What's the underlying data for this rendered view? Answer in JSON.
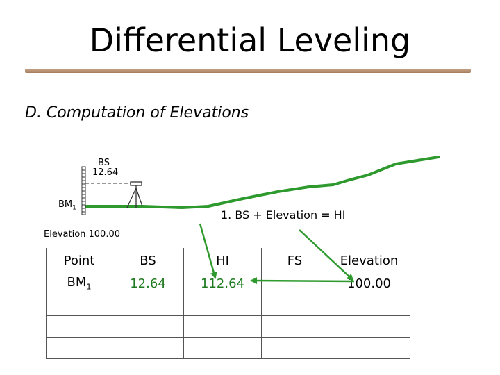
{
  "title": "Differential Leveling",
  "subtitle": "D. Computation of Elevations",
  "diagram": {
    "bs_label": "BS",
    "bs_value": "12.64",
    "bm_label": "BM",
    "bm_sub": "1",
    "elevation_label": "Elevation 100.00",
    "equation": "1. BS + Elevation  = HI"
  },
  "table": {
    "headers": [
      "Point",
      "BS",
      "HI",
      "FS",
      "Elevation"
    ],
    "row1": {
      "point": "BM",
      "point_sub": "1",
      "bs": "12.64",
      "hi": "112.64",
      "fs": "",
      "elevation": "100.00"
    }
  },
  "colors": {
    "ground": "#2e9a2e",
    "arrow": "#2e9a2e",
    "rule": "#a67c5b",
    "value_text": "#1f7a1f"
  }
}
